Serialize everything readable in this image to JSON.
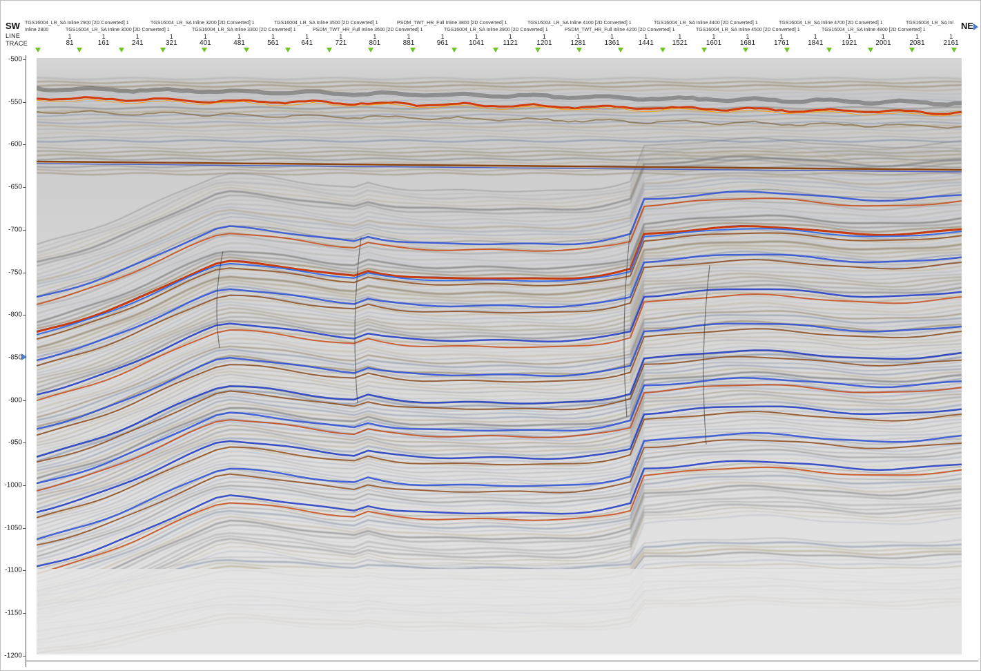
{
  "header": {
    "left_direction": "SW",
    "right_direction": "NE",
    "row_line_label": "LINE",
    "row_trace_label": "TRACE",
    "intersecting_lines_top": [
      "TGS16004_LR_SA Inline 2900 [2D Converted] 1",
      "TGS16004_LR_SA Inline 3200 [2D Converted] 1",
      "TGS16004_LR_SA Inline 3500 [2D Converted] 1",
      "PSDM_TWT_HR_Full Inline 3800 [2D Converted] 1",
      "TGS16004_LR_SA Inline 4100 [2D Converted] 1",
      "TGS16004_LR_SA Inline 4400 [2D Converted] 1",
      "TGS16004_LR_SA Inline 4700 [2D Converted] 1",
      "TGS16004_LR_SA Inl"
    ],
    "intersecting_lines_bottom": [
      "Inline 2800",
      "TGS16004_LR_SA Inline 3000 [2D Converted] 1",
      "TGS16004_LR_SA Inline 3300 [2D Converted] 1",
      "PSDM_TWT_HR_Full Inline 3600 [2D Converted] 1",
      "TGS16004_LR_SA Inline 3900 [2D Converted] 1",
      "PSDM_TWT_HR_Full Inline 4200 [2D Converted] 1",
      "TGS16004_LR_SA Inline 4500 [2D Converted] 1",
      "TGS16004_LR_SA Inline 4800 [2D Converted] 1"
    ],
    "line_values": [
      "1",
      "1",
      "1",
      "1",
      "1",
      "1",
      "1",
      "1",
      "1",
      "1",
      "1",
      "1",
      "1",
      "1",
      "1",
      "1",
      "1",
      "1",
      "1",
      "1",
      "1",
      "1",
      "1",
      "1",
      "1",
      "1",
      "1"
    ],
    "trace_values": [
      "81",
      "161",
      "241",
      "321",
      "401",
      "481",
      "561",
      "641",
      "721",
      "801",
      "881",
      "961",
      "1041",
      "1121",
      "1201",
      "1281",
      "1361",
      "1441",
      "1521",
      "1601",
      "1681",
      "1761",
      "1841",
      "1921",
      "2001",
      "2081",
      "2161"
    ]
  },
  "y_axis": {
    "ticks": [
      "-500",
      "-550",
      "-600",
      "-650",
      "-700",
      "-750",
      "-800",
      "-850",
      "-900",
      "-950",
      "-1000",
      "-1050",
      "-1100",
      "-1150",
      "-1200"
    ]
  },
  "colors": {
    "peak": "#c83c0c",
    "trough": "#1e3cc8",
    "background": "#d9d9d9",
    "marker": "#6cc520"
  }
}
